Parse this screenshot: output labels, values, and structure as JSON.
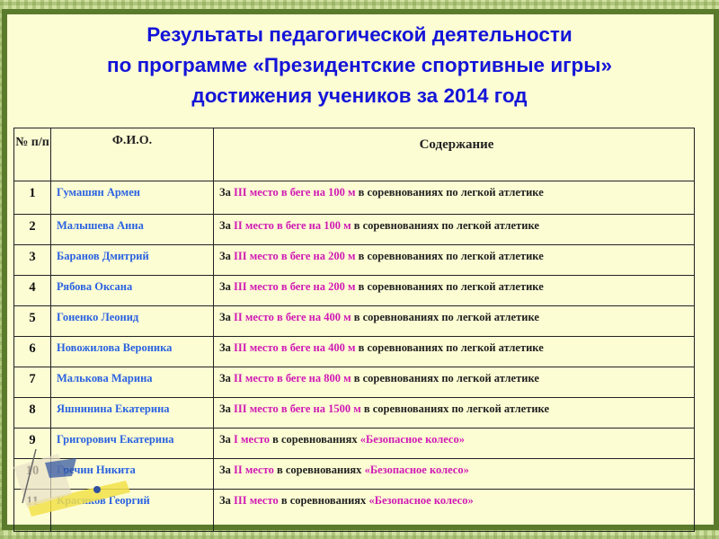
{
  "title": {
    "line1": "Результаты педагогической деятельности",
    "line2": "по программе «Президентские спортивные игры»",
    "line3": "достижения учеников за 2014 год"
  },
  "table": {
    "headers": {
      "num": "№ п/п",
      "fio": "Ф.И.О.",
      "content": "Содержание"
    },
    "rows": [
      {
        "num": "1",
        "name": "Гумашян Армен",
        "pre": "За ",
        "hl": "III место в беге на 100 м",
        "post": " в соревнованиях по легкой атлетике"
      },
      {
        "num": "2",
        "name": "Малышева Анна",
        "pre": "За ",
        "hl": "II место в беге на 100 м",
        "post": " в соревнованиях по легкой атлетике"
      },
      {
        "num": "3",
        "name": "Баранов Дмитрий",
        "pre": "За ",
        "hl": "III место в беге на 200 м",
        "post": " в соревнованиях по легкой атлетике"
      },
      {
        "num": "4",
        "name": "Рябова Оксана",
        "pre": "За ",
        "hl": "III место в беге на 200 м",
        "post": " в соревнованиях по легкой атлетике"
      },
      {
        "num": "5",
        "name": "Гоненко Леонид",
        "pre": "За ",
        "hl": "II место в беге на 400 м",
        "post": " в соревнованиях по легкой атлетике"
      },
      {
        "num": "6",
        "name": "Новожилова Вероника",
        "pre": "За ",
        "hl": "III место в беге на 400 м",
        "post": " в соревнованиях по легкой атлетике"
      },
      {
        "num": "7",
        "name": "Малькова Марина",
        "pre": "За ",
        "hl": "II место в беге на 800 м",
        "post": " в соревнованиях по легкой атлетике"
      },
      {
        "num": "8",
        "name": "Яшнинина Екатерина",
        "pre": "За ",
        "hl": "III место в беге на 1500 м",
        "post": " в соревнованиях по легкой атлетике"
      },
      {
        "num": "9",
        "name": "Григорович Екатерина",
        "pre": "За ",
        "hl": "I место",
        "post": " в соревнованиях ",
        "hl2": "«Безопасное колесо»"
      },
      {
        "num": "10",
        "name": "Гречин Никита",
        "pre": "За ",
        "hl": "II место",
        "post": " в соревнованиях ",
        "hl2": "«Безопасное колесо»"
      },
      {
        "num": "11",
        "name": "Красиков Георгий",
        "pre": "За ",
        "hl": "III место",
        "post": " в соревнованиях ",
        "hl2": "«Безопасное колесо»"
      }
    ]
  },
  "colors": {
    "title": "#1414d8",
    "name": "#2a62e0",
    "highlight": "#d01ab4",
    "background": "#fdfdd4",
    "frame": "#5a7a2c"
  }
}
